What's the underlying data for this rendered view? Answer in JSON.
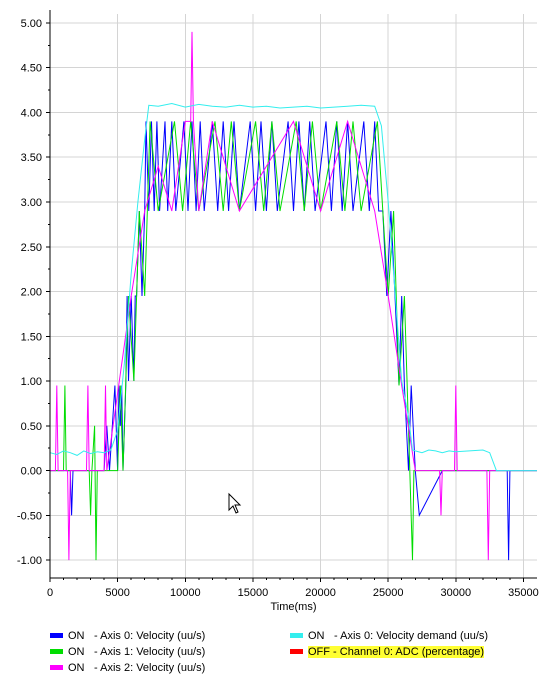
{
  "chart_data": {
    "type": "line",
    "xlabel": "Time(ms)",
    "ylabel": "",
    "xlim": [
      0,
      36000
    ],
    "ylim": [
      -1.2,
      5.1
    ],
    "x_ticks": [
      0,
      5000,
      10000,
      15000,
      20000,
      25000,
      30000,
      35000
    ],
    "x_tick_labels": [
      "0",
      "5000",
      "10000",
      "15000",
      "20000",
      "25000",
      "30000",
      "35000"
    ],
    "y_ticks": [
      -1.0,
      -0.5,
      0.0,
      0.5,
      1.0,
      1.5,
      2.0,
      2.5,
      3.0,
      3.5,
      4.0,
      4.5,
      5.0
    ],
    "y_tick_labels": [
      "-1.00",
      "-0.50",
      "0.00",
      "0.50",
      "1.00",
      "1.50",
      "2.00",
      "2.50",
      "3.00",
      "3.50",
      "4.00",
      "4.50",
      "5.00"
    ],
    "grid": true,
    "legend_position": "bottom",
    "series": [
      {
        "name": "Axis 0: Velocity (uu/s)",
        "status": "ON",
        "color": "#0000ff",
        "x": [
          0,
          1500,
          1600,
          1700,
          4000,
          4200,
          4400,
          4800,
          5000,
          5100,
          5200,
          5300,
          5400,
          5600,
          5700,
          5800,
          6000,
          6200,
          6300,
          6400,
          6600,
          6800,
          7000,
          7100,
          7300,
          7500,
          7700,
          7900,
          8100,
          8300,
          8500,
          8700,
          9000,
          9300,
          9600,
          9900,
          10200,
          10500,
          10800,
          11100,
          11400,
          11700,
          12000,
          12400,
          12800,
          13200,
          13600,
          14000,
          14400,
          14800,
          15200,
          15600,
          16000,
          16400,
          16800,
          17200,
          17600,
          18000,
          18400,
          18800,
          19200,
          19600,
          20000,
          20400,
          20800,
          21200,
          21600,
          22000,
          22400,
          22800,
          23200,
          23600,
          24000,
          24300,
          24600,
          24900,
          25200,
          25500,
          25800,
          26000,
          26200,
          26500,
          26700,
          27000,
          27300,
          29000,
          33800,
          33900,
          34000,
          36000
        ],
        "y": [
          0,
          0,
          -0.5,
          0,
          0,
          0.5,
          0,
          0.95,
          0,
          0.95,
          0.5,
          0.95,
          0,
          0.95,
          1.95,
          1.0,
          1.95,
          1.0,
          1.95,
          1.95,
          2.9,
          1.95,
          2.9,
          3.9,
          2.9,
          3.9,
          2.9,
          3.9,
          2.9,
          3.4,
          3.9,
          2.9,
          3.9,
          2.9,
          3.4,
          3.9,
          2.9,
          3.9,
          2.9,
          3.9,
          2.9,
          3.4,
          3.9,
          2.9,
          3.9,
          2.9,
          3.9,
          2.9,
          3.4,
          3.9,
          2.9,
          3.9,
          2.9,
          3.9,
          2.9,
          3.4,
          3.9,
          2.9,
          3.9,
          2.9,
          3.9,
          2.9,
          3.4,
          3.9,
          2.9,
          3.9,
          2.9,
          3.9,
          2.9,
          3.4,
          3.9,
          2.9,
          3.9,
          2.9,
          2.9,
          1.95,
          2.9,
          1.95,
          0.95,
          1.95,
          0.95,
          0,
          0.95,
          0,
          -0.5,
          0,
          0,
          -1.0,
          0,
          0
        ]
      },
      {
        "name": "Axis 1: Velocity (uu/s)",
        "status": "ON",
        "color": "#00dd00",
        "x": [
          0,
          1000,
          1100,
          1200,
          2900,
          3000,
          3100,
          3300,
          3400,
          3500,
          5000,
          5200,
          5400,
          5800,
          6200,
          6600,
          7000,
          7400,
          8000,
          8600,
          9200,
          9800,
          10400,
          11000,
          11600,
          12200,
          12800,
          13400,
          14000,
          14600,
          15200,
          15800,
          16400,
          17000,
          17600,
          18200,
          18800,
          19400,
          20000,
          20600,
          21200,
          21800,
          22400,
          23000,
          23600,
          24200,
          24600,
          25000,
          25400,
          25800,
          26200,
          26600,
          26800,
          26900,
          27000,
          28000,
          30000,
          36000
        ],
        "y": [
          0,
          0,
          0.95,
          0,
          0,
          -0.5,
          0,
          0.5,
          -1.0,
          0,
          0,
          0.95,
          0,
          1.95,
          1.0,
          2.9,
          1.95,
          3.9,
          2.9,
          3.4,
          3.9,
          2.9,
          3.9,
          2.9,
          3.4,
          3.9,
          2.9,
          3.9,
          2.9,
          3.4,
          3.9,
          2.9,
          3.9,
          2.9,
          3.4,
          3.9,
          2.9,
          3.9,
          2.9,
          3.4,
          3.9,
          2.9,
          3.9,
          2.9,
          3.4,
          3.9,
          2.9,
          1.95,
          2.9,
          0.95,
          1.95,
          0,
          -1.0,
          0,
          0,
          0,
          0,
          0
        ]
      },
      {
        "name": "Axis 2: Velocity (uu/s)",
        "status": "ON",
        "color": "#ff00ff",
        "x": [
          0,
          400,
          500,
          600,
          1300,
          1400,
          1500,
          2700,
          2800,
          2900,
          4000,
          4100,
          4200,
          6000,
          7000,
          8000,
          9000,
          10000,
          10400,
          10500,
          10600,
          11000,
          12000,
          14000,
          16000,
          18000,
          20000,
          22000,
          24000,
          25000,
          26000,
          27000,
          28000,
          28800,
          28900,
          29000,
          29900,
          30000,
          30100,
          32300,
          32400,
          32500,
          36000
        ],
        "y": [
          0,
          0,
          0.95,
          0,
          0,
          -1.0,
          0,
          0,
          0.95,
          0,
          0,
          0.95,
          0,
          1.95,
          2.9,
          3.4,
          2.9,
          3.9,
          3.9,
          4.9,
          3.9,
          2.9,
          3.9,
          2.9,
          3.4,
          3.9,
          2.9,
          3.9,
          2.9,
          1.95,
          0.95,
          0,
          0,
          0,
          -0.5,
          0,
          0,
          0.95,
          0,
          0,
          -1.0,
          0,
          0
        ]
      },
      {
        "name": "Axis 0: Velocity demand (uu/s)",
        "status": "ON",
        "color": "#33eeee",
        "x": [
          0,
          500,
          1000,
          1500,
          2000,
          2500,
          3000,
          3500,
          4000,
          4500,
          5000,
          5500,
          6000,
          6500,
          7000,
          7300,
          8000,
          9000,
          10000,
          11000,
          12000,
          13000,
          14000,
          15000,
          16000,
          17000,
          18000,
          19000,
          20000,
          21000,
          22000,
          23000,
          24000,
          24500,
          25000,
          25500,
          26000,
          26500,
          26800,
          27000,
          27500,
          28000,
          28500,
          29000,
          29500,
          30000,
          31000,
          32000,
          32500,
          33000,
          33500,
          34000,
          36000
        ],
        "y": [
          0.2,
          0.18,
          0.22,
          0.2,
          0.17,
          0.22,
          0.19,
          0.21,
          0.2,
          0.23,
          0.45,
          1.2,
          2.2,
          3.0,
          3.7,
          4.08,
          4.07,
          4.1,
          4.06,
          4.09,
          4.07,
          4.06,
          4.08,
          4.06,
          4.07,
          4.05,
          4.06,
          4.07,
          4.05,
          4.06,
          4.07,
          4.08,
          4.07,
          3.85,
          3.0,
          2.0,
          1.0,
          0.6,
          0.23,
          0.22,
          0.2,
          0.23,
          0.22,
          0.2,
          0.22,
          0.21,
          0.22,
          0.23,
          0.2,
          0.0,
          0.0,
          0.0,
          0.0
        ]
      },
      {
        "name": "Channel 0: ADC (percentage)",
        "status": "OFF",
        "color": "#ff0000",
        "x": [],
        "y": []
      }
    ]
  },
  "legend": {
    "items": [
      {
        "status": "ON",
        "label": "Axis 0: Velocity (uu/s)",
        "color": "#0000ff"
      },
      {
        "status": "ON",
        "label": "Axis 1: Velocity (uu/s)",
        "color": "#00dd00"
      },
      {
        "status": "ON",
        "label": "Axis 2: Velocity (uu/s)",
        "color": "#ff00ff"
      },
      {
        "status": "ON",
        "label": "Axis 0: Velocity demand (uu/s)",
        "color": "#33eeee"
      },
      {
        "status": "OFF",
        "label": "Channel 0: ADC (percentage)",
        "color": "#ff0000"
      }
    ]
  }
}
